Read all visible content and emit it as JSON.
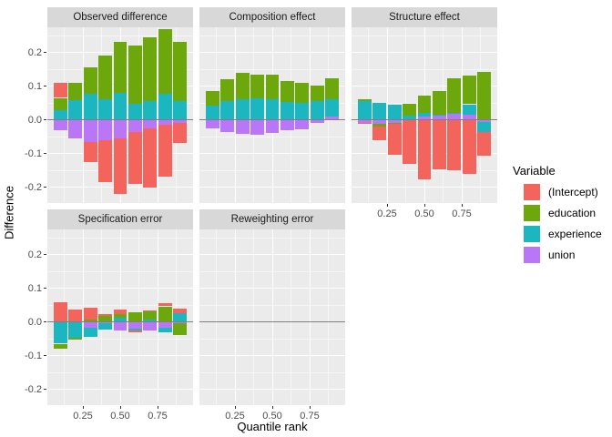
{
  "axes": {
    "y_label": "Difference",
    "x_label": "Quantile rank",
    "y_ticks": [
      {
        "value": 0.2,
        "label": "0.2"
      },
      {
        "value": 0.1,
        "label": "0.1"
      },
      {
        "value": 0.0,
        "label": "0.0"
      },
      {
        "value": -0.1,
        "label": "-0.1"
      },
      {
        "value": -0.2,
        "label": "-0.2"
      }
    ],
    "x_ticks": [
      {
        "value": 0.25,
        "label": "0.25"
      },
      {
        "value": 0.5,
        "label": "0.50"
      },
      {
        "value": 0.75,
        "label": "0.75"
      }
    ]
  },
  "legend": {
    "title": "Variable",
    "entries": [
      {
        "label": "(Intercept)",
        "color": "#F3655C"
      },
      {
        "label": "education",
        "color": "#6CA70C"
      },
      {
        "label": "experience",
        "color": "#1BB6BF"
      },
      {
        "label": "union",
        "color": "#B977F7"
      }
    ]
  },
  "chart_data": {
    "type": "bar",
    "stacked": true,
    "title": "",
    "xlabel": "Quantile rank",
    "ylabel": "Difference",
    "x": [
      0.1,
      0.2,
      0.3,
      0.4,
      0.5,
      0.6,
      0.7,
      0.8,
      0.9
    ],
    "x_axis_breaks": [
      0.25,
      0.5,
      0.75
    ],
    "x_axis_minor_breaks": [
      0.125,
      0.375,
      0.625,
      0.875
    ],
    "y_axis_breaks": [
      0.2,
      0.1,
      0.0,
      -0.1,
      -0.2
    ],
    "y_axis_minor_breaks": [
      0.25,
      0.15,
      0.05,
      -0.05,
      -0.15
    ],
    "ylim": [
      -0.247,
      0.274
    ],
    "grid": true,
    "legend_position": "right",
    "stack_order_from_zero": [
      "union",
      "experience",
      "education",
      "(Intercept)"
    ],
    "series_colors": {
      "(Intercept)": "#F3655C",
      "education": "#6CA70C",
      "experience": "#1BB6BF",
      "union": "#B977F7"
    },
    "facets": [
      {
        "title": "Observed difference",
        "row": 0,
        "col": 0,
        "show_x_axis": false,
        "values": {
          "(Intercept)": [
            0.045,
            0.0,
            -0.06,
            -0.125,
            -0.165,
            -0.155,
            -0.175,
            -0.155,
            -0.06
          ],
          "education": [
            0.035,
            0.053,
            0.077,
            0.13,
            0.15,
            0.173,
            0.19,
            0.19,
            0.175
          ],
          "experience": [
            0.03,
            0.057,
            0.078,
            0.06,
            0.08,
            0.047,
            0.055,
            0.078,
            0.055
          ],
          "union": [
            -0.03,
            -0.055,
            -0.065,
            -0.06,
            -0.055,
            -0.035,
            -0.025,
            -0.015,
            -0.01
          ]
        }
      },
      {
        "title": "Composition effect",
        "row": 0,
        "col": 1,
        "show_x_axis": false,
        "values": {
          "(Intercept)": [
            0,
            0,
            0,
            0,
            0,
            0,
            0,
            0,
            0
          ],
          "education": [
            0.043,
            0.065,
            0.078,
            0.072,
            0.073,
            0.063,
            0.06,
            0.047,
            0.06
          ],
          "experience": [
            0.042,
            0.055,
            0.062,
            0.063,
            0.062,
            0.052,
            0.05,
            0.055,
            0.052
          ],
          "union": [
            -0.025,
            -0.035,
            -0.042,
            -0.045,
            -0.04,
            -0.03,
            -0.028,
            -0.008,
            0.01
          ]
        }
      },
      {
        "title": "Structure effect",
        "row": 0,
        "col": 2,
        "show_x_axis": true,
        "values": {
          "(Intercept)": [
            -0.005,
            -0.042,
            -0.092,
            -0.13,
            -0.176,
            -0.148,
            -0.15,
            -0.16,
            -0.07
          ],
          "education": [
            0.005,
            -0.008,
            -0.004,
            0.036,
            0.051,
            0.072,
            0.102,
            0.084,
            0.143
          ],
          "experience": [
            0.055,
            0.049,
            0.046,
            0.012,
            0.012,
            0.002,
            0.002,
            0.032,
            -0.031
          ],
          "union": [
            -0.008,
            -0.011,
            -0.009,
            -0.002,
            0.009,
            0.012,
            0.018,
            0.014,
            -0.006
          ]
        }
      },
      {
        "title": "Specification error",
        "row": 1,
        "col": 0,
        "show_x_axis": true,
        "values": {
          "(Intercept)": [
            0.057,
            0.037,
            0.036,
            0.005,
            0.014,
            -0.004,
            0.003,
            0.01,
            0.013
          ],
          "education": [
            -0.014,
            -0.004,
            0.007,
            0.018,
            0.009,
            0.028,
            0.023,
            0.046,
            -0.035
          ],
          "experience": [
            -0.063,
            -0.048,
            -0.027,
            -0.018,
            0.013,
            -0.005,
            0.007,
            -0.013,
            0.025
          ],
          "union": [
            -0.002,
            0.0,
            -0.017,
            -0.005,
            -0.026,
            -0.021,
            -0.026,
            -0.017,
            -0.005
          ]
        }
      },
      {
        "title": "Reweighting error",
        "row": 1,
        "col": 1,
        "show_x_axis": true,
        "values": {
          "(Intercept)": [
            0,
            0,
            0,
            0,
            0,
            0,
            0,
            0,
            0
          ],
          "education": [
            0,
            0,
            0,
            0,
            0,
            0,
            0,
            0,
            0
          ],
          "experience": [
            0,
            0,
            0,
            0,
            0,
            0,
            0,
            0,
            0
          ],
          "union": [
            0,
            0,
            0,
            0,
            0,
            0,
            0,
            0,
            0
          ]
        }
      }
    ]
  }
}
